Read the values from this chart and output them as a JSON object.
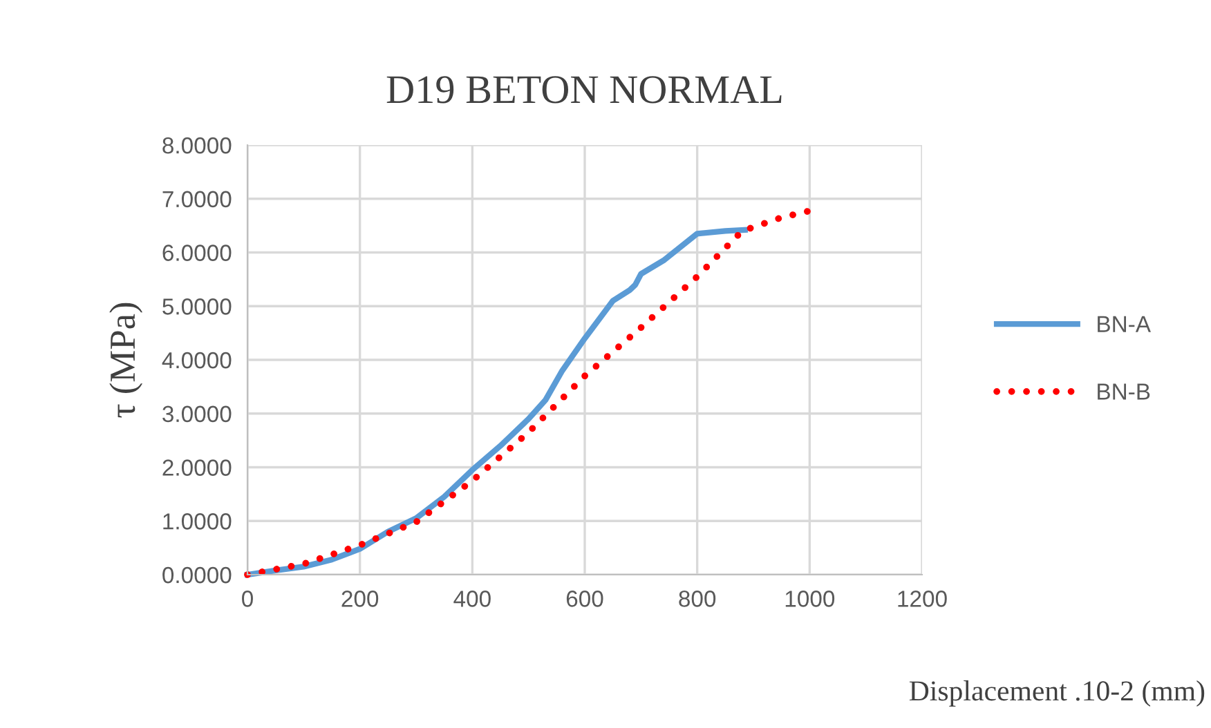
{
  "chart_data": {
    "type": "line",
    "title": "D19 BETON NORMAL",
    "xlabel": "Displacement .10-2 (mm)",
    "ylabel": "τ (MPa)",
    "xlim": [
      0,
      1200
    ],
    "xticks": [
      0,
      200,
      400,
      600,
      800,
      1000,
      1200
    ],
    "ylim": [
      0,
      8
    ],
    "yticks": [
      {
        "value": 0,
        "label": "0.0000"
      },
      {
        "value": 1,
        "label": "1.0000"
      },
      {
        "value": 2,
        "label": "2.0000"
      },
      {
        "value": 3,
        "label": "3.0000"
      },
      {
        "value": 4,
        "label": "4.0000"
      },
      {
        "value": 5,
        "label": "5.0000"
      },
      {
        "value": 6,
        "label": "6.0000"
      },
      {
        "value": 7,
        "label": "7.0000"
      },
      {
        "value": 8,
        "label": "8.0000"
      }
    ],
    "grid": true,
    "legend": "right",
    "marker": "none",
    "series": [
      {
        "name": "BN-A",
        "color": "#5b9bd5",
        "line_style": "solid",
        "x": [
          0,
          50,
          100,
          150,
          200,
          250,
          300,
          350,
          400,
          450,
          500,
          530,
          560,
          600,
          650,
          680,
          690,
          700,
          740,
          800,
          850,
          885
        ],
        "values": [
          0,
          0.08,
          0.15,
          0.28,
          0.48,
          0.8,
          1.05,
          1.45,
          1.95,
          2.4,
          2.9,
          3.25,
          3.8,
          4.4,
          5.1,
          5.3,
          5.4,
          5.6,
          5.85,
          6.35,
          6.4,
          6.42
        ]
      },
      {
        "name": "BN-B",
        "color": "#ff0000",
        "line_style": "dotted",
        "x": [
          0,
          100,
          200,
          300,
          400,
          500,
          600,
          700,
          800,
          880,
          950,
          1010
        ],
        "values": [
          0,
          0.2,
          0.55,
          0.98,
          1.75,
          2.65,
          3.7,
          4.6,
          5.55,
          6.4,
          6.65,
          6.8
        ]
      }
    ]
  }
}
